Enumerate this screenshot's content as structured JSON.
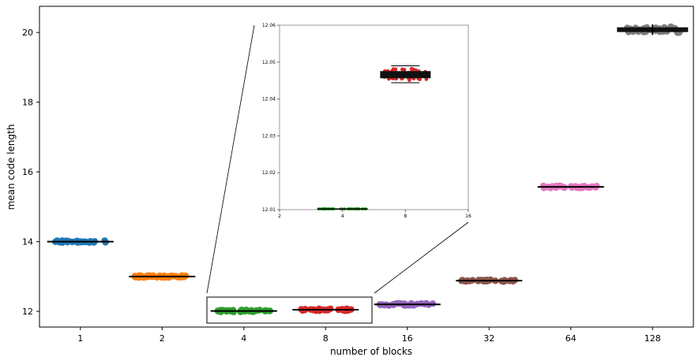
{
  "chart_data": {
    "type": "strip-box",
    "xlabel": "number of blocks",
    "ylabel": "mean code length",
    "categories": [
      "1",
      "2",
      "4",
      "8",
      "16",
      "32",
      "64",
      "128"
    ],
    "ylim": [
      11.55,
      20.75
    ],
    "yticks": [
      "12",
      "14",
      "16",
      "18",
      "20"
    ],
    "grid": false,
    "series": [
      {
        "category": "1",
        "median": 14.0,
        "color": "#1f77b4"
      },
      {
        "category": "2",
        "median": 13.0,
        "color": "#ff7f0e"
      },
      {
        "category": "4",
        "median": 12.01,
        "color": "#2ca02c"
      },
      {
        "category": "8",
        "median": 12.047,
        "color": "#d62728"
      },
      {
        "category": "16",
        "median": 12.2,
        "color": "#9467bd"
      },
      {
        "category": "32",
        "median": 12.88,
        "color": "#8c564b"
      },
      {
        "category": "64",
        "median": 15.57,
        "color": "#e377c2"
      },
      {
        "category": "128",
        "median": 20.08,
        "color": "#7f7f7f"
      }
    ],
    "inset": {
      "xticks": [
        "2",
        "4",
        "8",
        "16"
      ],
      "yticks": [
        "12.01",
        "12.02",
        "12.03",
        "12.04",
        "12.05",
        "12.06"
      ],
      "ylim": [
        12.01,
        12.06
      ],
      "series": [
        {
          "x": 4,
          "median": 12.0102,
          "color": "#2ca02c"
        },
        {
          "x": 8,
          "median": 12.0467,
          "color": "#d62728"
        }
      ]
    }
  }
}
